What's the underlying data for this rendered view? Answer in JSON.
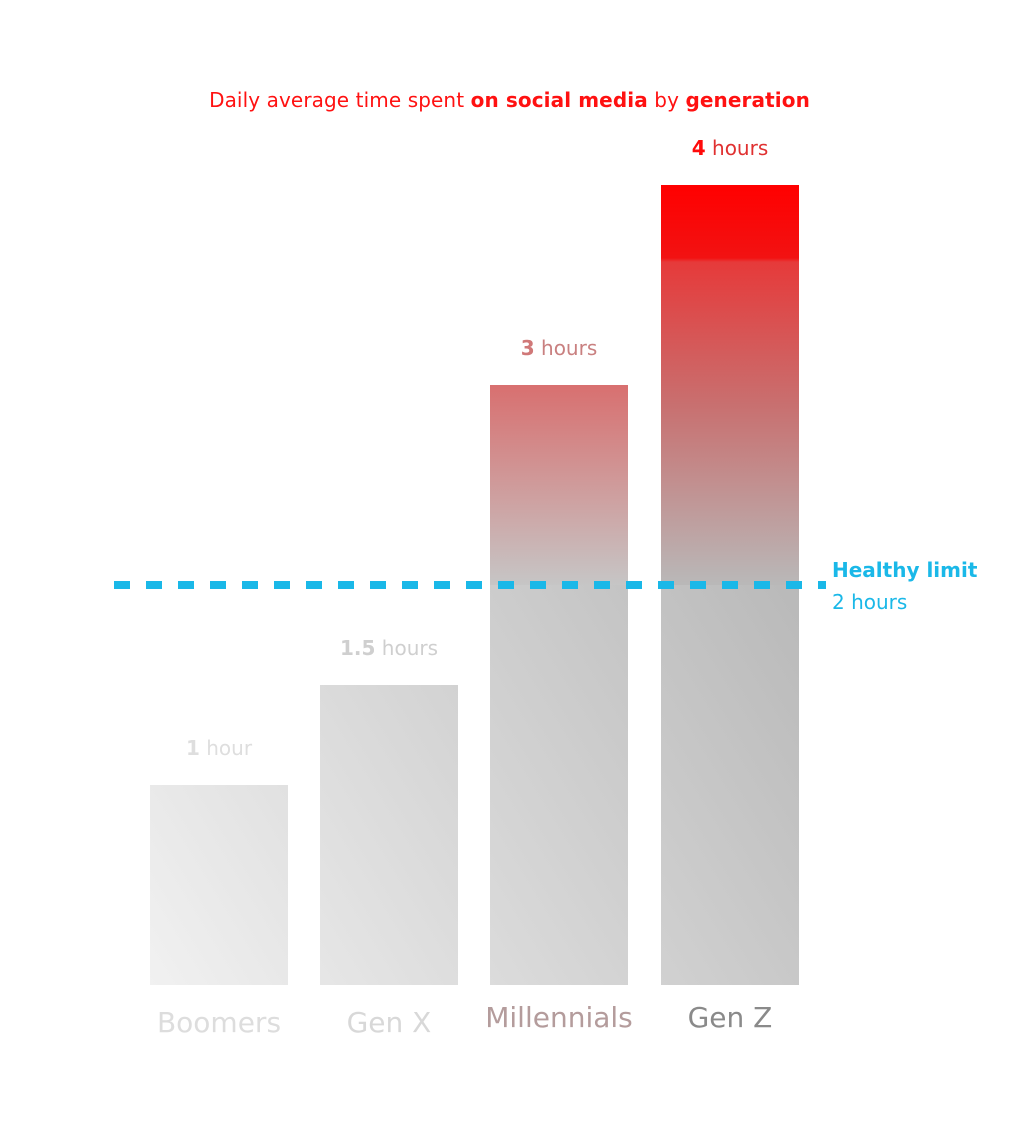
{
  "chart_data": {
    "type": "bar",
    "title": {
      "part1": "Daily average time spent ",
      "part2": "on social media",
      "part3": " by ",
      "part4": "generation"
    },
    "categories": [
      "Boomers",
      "Gen X",
      "Millennials",
      "Gen Z"
    ],
    "values": [
      1,
      1.5,
      3,
      4
    ],
    "value_labels": [
      {
        "value": "1",
        "unit": " hour"
      },
      {
        "value": "1.5",
        "unit": " hours"
      },
      {
        "value": "3",
        "unit": " hours"
      },
      {
        "value": "4",
        "unit": " hours"
      }
    ],
    "ylim": [
      0,
      4
    ],
    "grid": false,
    "reference_line": {
      "value": 2,
      "label": "Healthy limit",
      "sublabel": "2 hours",
      "color": "#1ab8e8"
    },
    "colors": {
      "title": "#ff1111",
      "highlight": "#ff0000",
      "gray_light": "#f0f0f0",
      "gray_dark": "#b8b8b8"
    }
  }
}
